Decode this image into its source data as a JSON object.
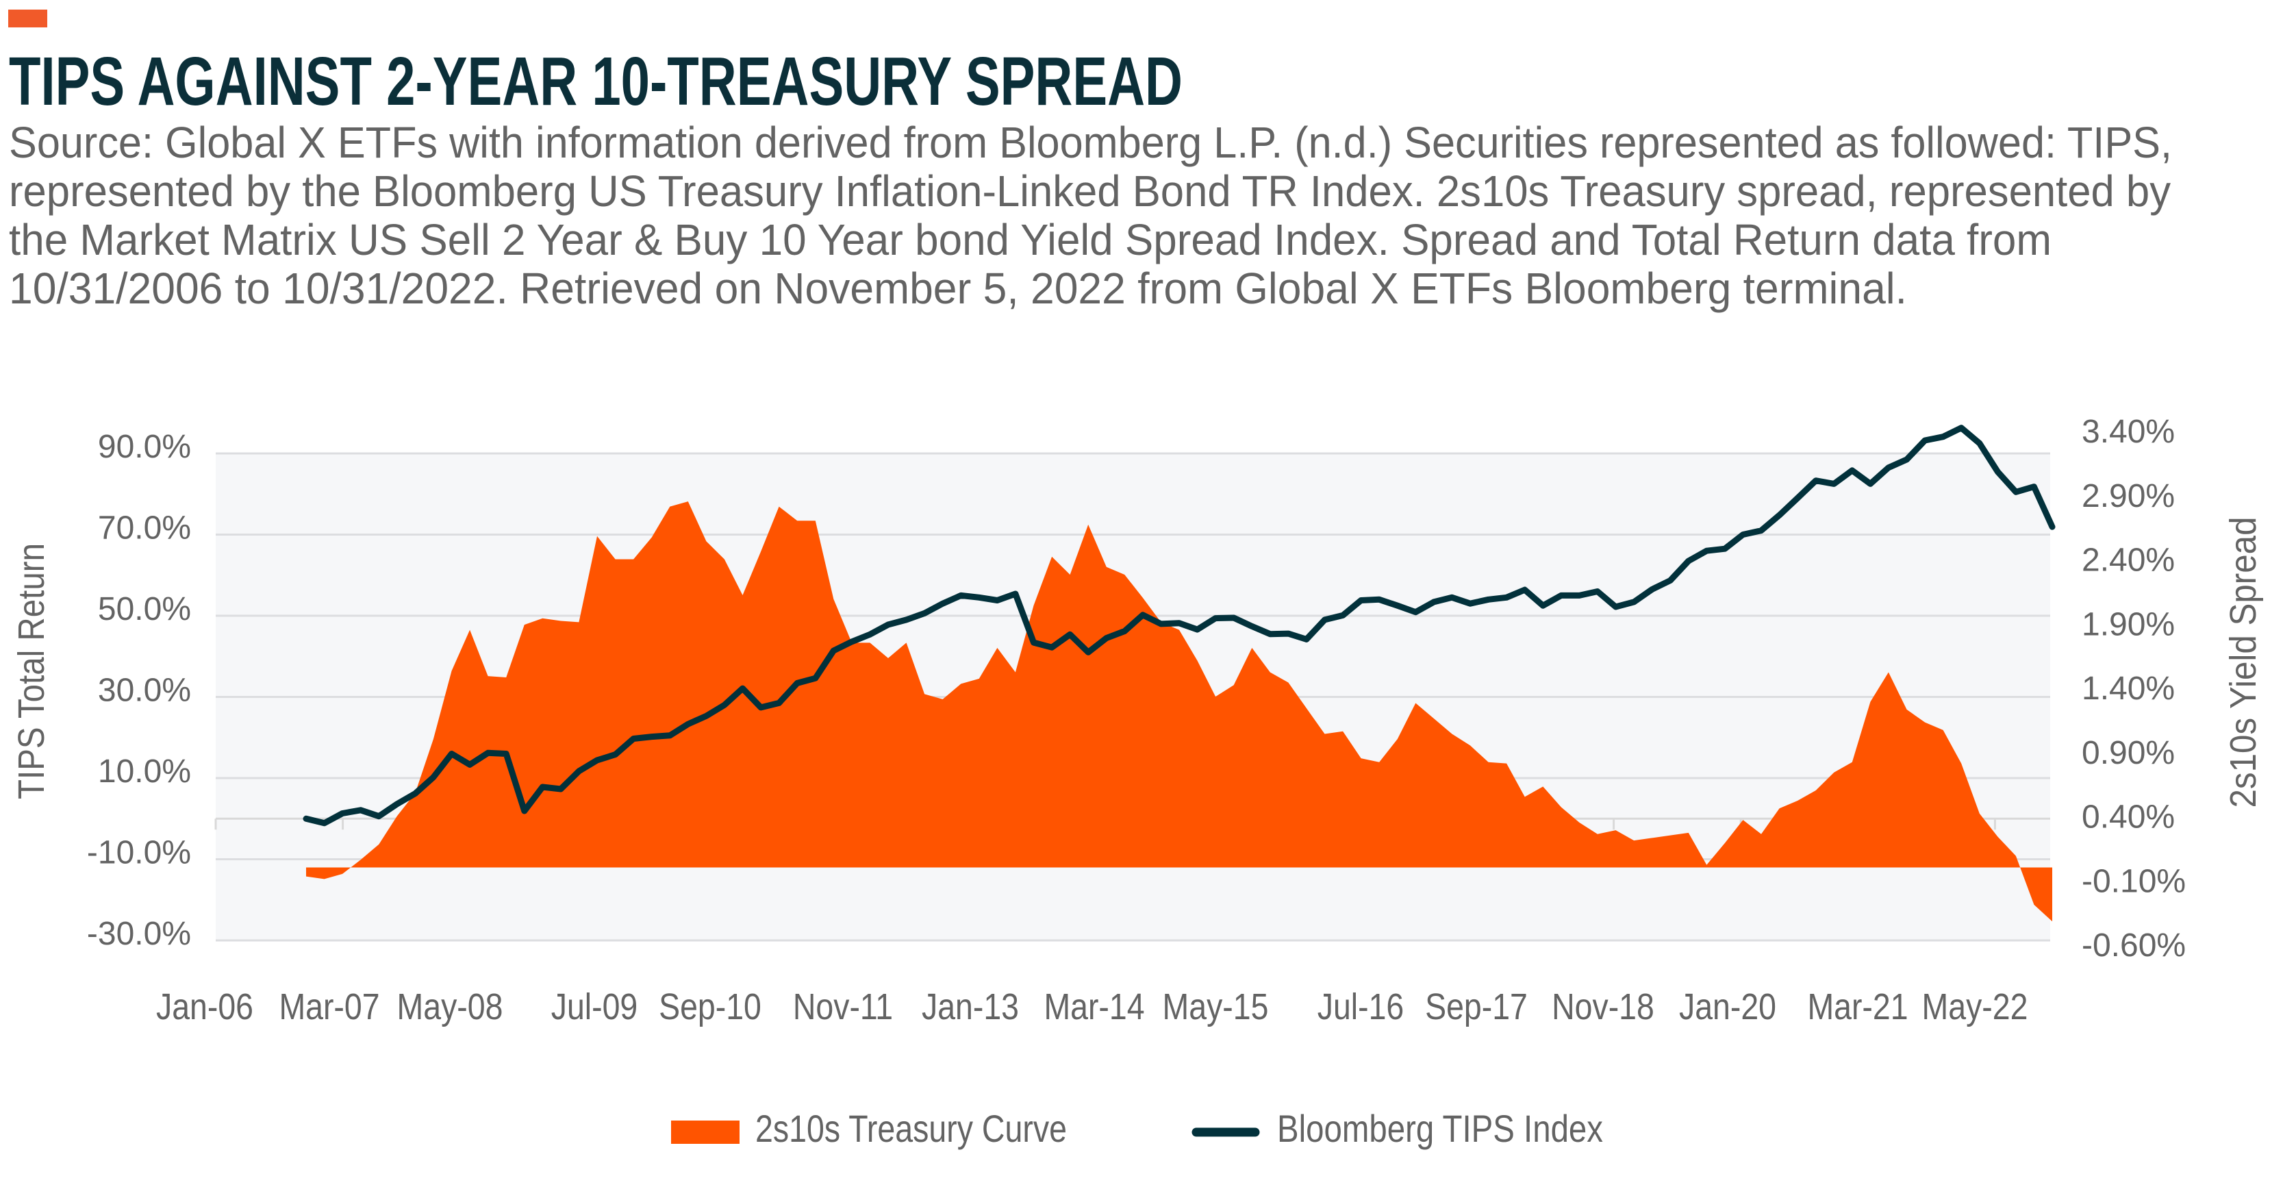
{
  "header": {
    "accent_color": "#f15a29",
    "source_lines": [
      "Source: Global X ETFs with information derived from Bloomberg L.P. (n.d.) Securities represented as followed: TIPS,",
      "represented by the Bloomberg US Treasury Inflation-Linked Bond TR Index. 2s10s Treasury spread, represented by",
      "the Market Matrix US Sell 2 Year & Buy 10 Year bond Yield Spread Index. Spread and Total Return data from",
      "10/31/2006 to 10/31/2022. Retrieved on November 5, 2022 from Global X ETFs Bloomberg terminal."
    ]
  },
  "colors": {
    "title": "#0b2f39",
    "text": "#636363",
    "grid": "#dcdde0",
    "plot_bg": "#f6f7f9",
    "spread": "#ff5400",
    "tips": "#02313b"
  },
  "chart_data": {
    "type": "area",
    "title": "TIPS AGAINST 2-YEAR 10-TREASURY SPREAD",
    "x": [
      "Oct-06",
      "Dec-06",
      "Feb-07",
      "Apr-07",
      "Jun-07",
      "Aug-07",
      "Oct-07",
      "Dec-07",
      "Feb-08",
      "Apr-08",
      "Jun-08",
      "Aug-08",
      "Oct-08",
      "Dec-08",
      "Feb-09",
      "Apr-09",
      "Jun-09",
      "Aug-09",
      "Oct-09",
      "Dec-09",
      "Feb-10",
      "Apr-10",
      "Jun-10",
      "Aug-10",
      "Oct-10",
      "Dec-10",
      "Feb-11",
      "Apr-11",
      "Jun-11",
      "Aug-11",
      "Oct-11",
      "Dec-11",
      "Feb-12",
      "Apr-12",
      "Jun-12",
      "Aug-12",
      "Oct-12",
      "Dec-12",
      "Feb-13",
      "Apr-13",
      "Jun-13",
      "Aug-13",
      "Oct-13",
      "Dec-13",
      "Feb-14",
      "Apr-14",
      "Jun-14",
      "Aug-14",
      "Oct-14",
      "Dec-14",
      "Feb-15",
      "Apr-15",
      "Jun-15",
      "Aug-15",
      "Oct-15",
      "Dec-15",
      "Feb-16",
      "Apr-16",
      "Jun-16",
      "Aug-16",
      "Oct-16",
      "Dec-16",
      "Feb-17",
      "Apr-17",
      "Jun-17",
      "Aug-17",
      "Oct-17",
      "Dec-17",
      "Feb-18",
      "Apr-18",
      "Jun-18",
      "Aug-18",
      "Oct-18",
      "Dec-18",
      "Feb-19",
      "Apr-19",
      "Jun-19",
      "Aug-19",
      "Oct-19",
      "Dec-19",
      "Feb-20",
      "Apr-20",
      "Jun-20",
      "Aug-20",
      "Oct-20",
      "Dec-20",
      "Feb-21",
      "Apr-21",
      "Jun-21",
      "Aug-21",
      "Oct-21",
      "Dec-21",
      "Feb-22",
      "Apr-22",
      "Jun-22",
      "Aug-22",
      "Oct-22"
    ],
    "series": [
      {
        "name": "2s10s Treasury Curve",
        "type": "area",
        "axis": "right",
        "unit": "%",
        "values": [
          -0.07,
          -0.09,
          -0.05,
          0.06,
          0.18,
          0.4,
          0.58,
          1.0,
          1.53,
          1.85,
          1.49,
          1.48,
          1.89,
          1.94,
          1.92,
          1.91,
          2.58,
          2.4,
          2.4,
          2.57,
          2.81,
          2.85,
          2.54,
          2.4,
          2.12,
          2.46,
          2.81,
          2.7,
          2.7,
          2.09,
          1.75,
          1.75,
          1.63,
          1.75,
          1.35,
          1.31,
          1.43,
          1.47,
          1.71,
          1.52,
          2.04,
          2.42,
          2.28,
          2.67,
          2.34,
          2.28,
          2.1,
          1.91,
          1.85,
          1.61,
          1.33,
          1.42,
          1.71,
          1.52,
          1.44,
          1.24,
          1.04,
          1.06,
          0.85,
          0.82,
          1.0,
          1.28,
          1.16,
          1.04,
          0.95,
          0.82,
          0.81,
          0.55,
          0.63,
          0.47,
          0.35,
          0.26,
          0.29,
          0.21,
          0.23,
          0.25,
          0.27,
          0.02,
          0.19,
          0.37,
          0.26,
          0.46,
          0.52,
          0.6,
          0.74,
          0.82,
          1.29,
          1.52,
          1.23,
          1.13,
          1.07,
          0.81,
          0.42,
          0.24,
          0.09,
          -0.29,
          -0.42
        ]
      },
      {
        "name": "Bloomberg TIPS Index",
        "type": "line",
        "axis": "left",
        "unit": "%",
        "values": [
          0,
          -1.1,
          1.3,
          2.1,
          0.6,
          3.6,
          6.2,
          10.2,
          16,
          13.3,
          16.2,
          16,
          1.9,
          7.8,
          7.3,
          11.7,
          14.4,
          15.8,
          19.7,
          20.2,
          20.5,
          23.3,
          25.3,
          28,
          32.1,
          27.4,
          28.5,
          33.4,
          34.6,
          41.4,
          43.6,
          45.4,
          47.8,
          49,
          50.6,
          53,
          55,
          54.5,
          53.8,
          55.4,
          43.4,
          42.2,
          45.4,
          41,
          44.5,
          46.2,
          50.2,
          48,
          48.2,
          46.6,
          49.4,
          49.5,
          47.4,
          45.5,
          45.6,
          44.2,
          49,
          50.1,
          53.8,
          54,
          52.5,
          50.9,
          53.4,
          54.5,
          53,
          54,
          54.5,
          56.4,
          52.5,
          55,
          55,
          56,
          52.2,
          53.4,
          56.5,
          58.7,
          63.5,
          66,
          66.5,
          70,
          71,
          74.8,
          79,
          83.3,
          82.5,
          85.8,
          82.5,
          86.5,
          88.5,
          93.2,
          94.1,
          96.3,
          92.5,
          85.5,
          80.5,
          81.8,
          71.9
        ]
      }
    ],
    "xlabel": "",
    "xticks": [
      "Jan-06",
      "Mar-07",
      "May-08",
      "Jul-09",
      "Sep-10",
      "Nov-11",
      "Jan-13",
      "Mar-14",
      "May-15",
      "Jul-16",
      "Sep-17",
      "Nov-18",
      "Jan-20",
      "Mar-21",
      "May-22"
    ],
    "ylabel": "TIPS Total Return",
    "ylim": [
      -30,
      90
    ],
    "ytick_labels": [
      "90.0%",
      "70.0%",
      "50.0%",
      "30.0%",
      "10.0%",
      "-10.0%",
      "-30.0%"
    ],
    "y2label": "2s10s Yield Spread",
    "y2lim": [
      -0.6,
      3.4
    ],
    "y2tick_labels": [
      "3.40%",
      "2.90%",
      "2.40%",
      "1.90%",
      "1.40%",
      "0.90%",
      "0.40%",
      "-0.10%",
      "-0.60%"
    ],
    "grid": true,
    "legend_position": "bottom"
  }
}
